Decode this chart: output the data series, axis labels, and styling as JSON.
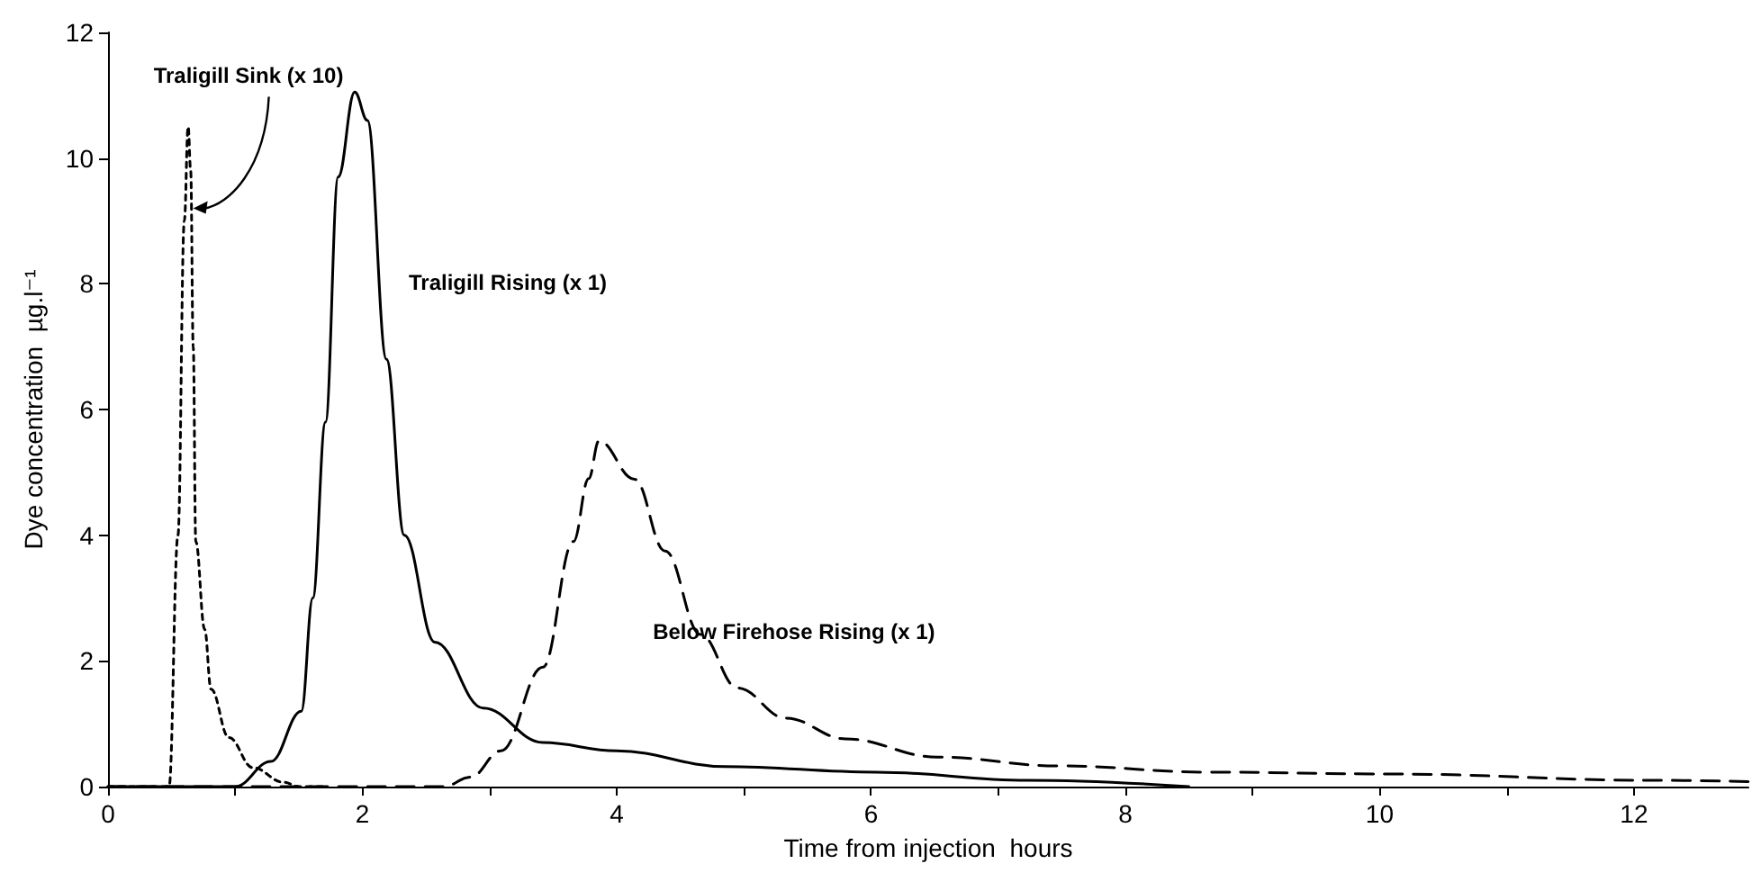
{
  "chart_data": {
    "type": "line",
    "xlabel": "Time from injection  hours",
    "ylabel": "Dye concentration  µg.l⁻¹",
    "xlim": [
      0,
      12.9
    ],
    "ylim": [
      0,
      12
    ],
    "xticks": [
      0,
      {
        "value": 1,
        "label": null
      },
      2,
      {
        "value": 3,
        "label": null
      },
      4,
      {
        "value": 5,
        "label": null
      },
      6,
      {
        "value": 7,
        "label": null
      },
      8,
      {
        "value": 9,
        "label": null
      },
      10,
      {
        "value": 11,
        "label": null
      },
      12
    ],
    "yticks": [
      0,
      2,
      4,
      6,
      8,
      10,
      12
    ],
    "grid": false,
    "marker": "none",
    "series": [
      {
        "color": "#000000",
        "line_style": "dotted",
        "x": [
          0,
          0.48,
          0.55,
          0.6,
          0.63,
          0.65,
          0.67,
          0.69,
          0.76,
          0.81,
          0.95,
          1.14,
          1.38,
          1.5,
          1.7
        ],
        "values": [
          0,
          0,
          4,
          9,
          10.5,
          9.8,
          7,
          3.9,
          2.5,
          1.55,
          0.78,
          0.3,
          0.07,
          0,
          0
        ]
      },
      {
        "color": "#000000",
        "line_style": "solid",
        "x": [
          0,
          1,
          1.28,
          1.52,
          1.61,
          1.71,
          1.81,
          1.94,
          2.04,
          2.19,
          2.33,
          2.57,
          2.95,
          3.42,
          4,
          4.85,
          6.04,
          7.23,
          8.5
        ],
        "values": [
          0,
          0,
          0.4,
          1.2,
          3,
          5.8,
          9.7,
          11.05,
          10.6,
          6.8,
          4,
          2.3,
          1.25,
          0.7,
          0.57,
          0.32,
          0.23,
          0.1,
          0
        ]
      },
      {
        "color": "#000000",
        "line_style": "dashed",
        "x": [
          0,
          2.64,
          2.85,
          3.09,
          3.42,
          3.66,
          3.78,
          3.86,
          4.14,
          4.38,
          4.66,
          4.95,
          5.33,
          5.8,
          6.52,
          7.47,
          8.66,
          10.09,
          12.14,
          12.9
        ],
        "values": [
          0,
          0,
          0.15,
          0.57,
          1.9,
          3.9,
          4.9,
          5.5,
          4.89,
          3.75,
          2.42,
          1.57,
          1.09,
          0.76,
          0.47,
          0.33,
          0.23,
          0.2,
          0.1,
          0.08
        ]
      }
    ],
    "annotations": [
      {
        "text": "Traligill Sink (x 10)",
        "x": 0.67,
        "y": 9.2
      },
      "Traligill Rising (x 1)",
      "Below Firehose Rising (x 1)"
    ]
  }
}
